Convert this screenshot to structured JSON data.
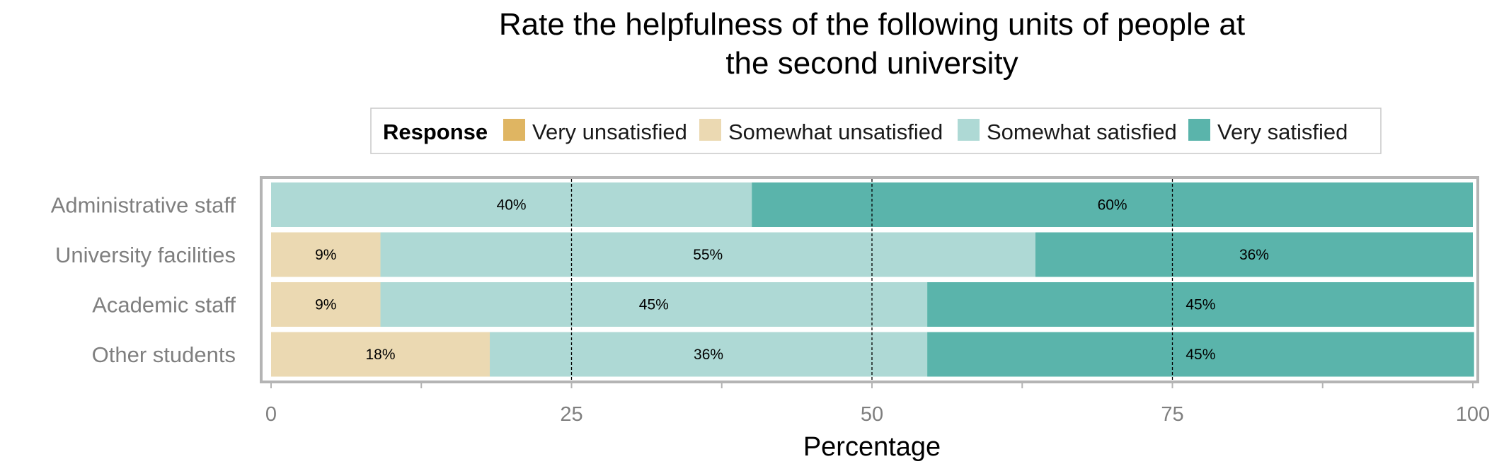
{
  "chart_data": {
    "type": "bar",
    "orientation": "horizontal",
    "stacked": true,
    "title": "Rate the helpfulness of the following units of people at the second university",
    "title_lines": [
      "Rate the helpfulness of the following units of people at",
      "the second university"
    ],
    "xlabel": "Percentage",
    "ylabel": "",
    "xlim": [
      0,
      100
    ],
    "xticks": [
      0,
      25,
      50,
      75,
      100
    ],
    "reference_lines": [
      25,
      50,
      75
    ],
    "categories": [
      "Administrative staff",
      "University facilities",
      "Academic staff",
      "Other students"
    ],
    "legend": {
      "title": "Response",
      "position": "top"
    },
    "series": [
      {
        "name": "Very unsatisfied",
        "color": "#dfb562",
        "values": [
          0,
          0,
          0,
          0
        ],
        "labels": [
          "",
          "",
          "",
          ""
        ]
      },
      {
        "name": "Somewhat unsatisfied",
        "color": "#ebd9b2",
        "values": [
          0,
          9.1,
          9.1,
          18.2
        ],
        "labels": [
          "",
          "9%",
          "9%",
          "18%"
        ]
      },
      {
        "name": "Somewhat satisfied",
        "color": "#aed9d5",
        "values": [
          40,
          54.5,
          45.5,
          36.4
        ],
        "labels": [
          "40%",
          "55%",
          "45%",
          "36%"
        ]
      },
      {
        "name": "Very satisfied",
        "color": "#5ab4ab",
        "values": [
          60,
          36.4,
          45.5,
          45.5
        ],
        "labels": [
          "60%",
          "36%",
          "45%",
          "45%"
        ]
      }
    ]
  }
}
